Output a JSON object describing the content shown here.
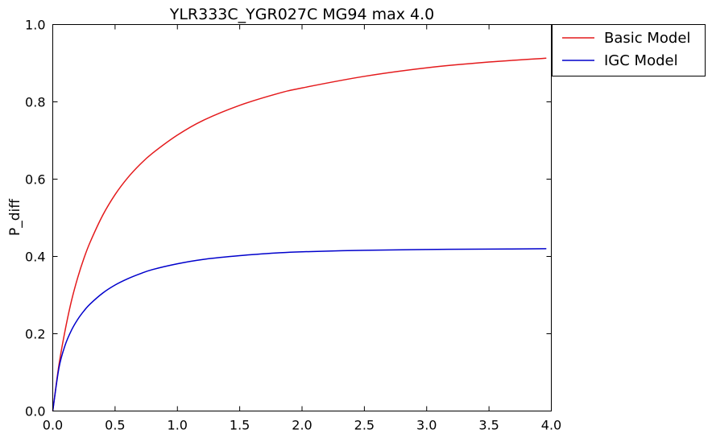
{
  "chart_data": {
    "type": "line",
    "title": "YLR333C_YGR027C MG94 max 4.0",
    "xlabel": "",
    "ylabel": "P_diff",
    "xlim": [
      0.0,
      4.0
    ],
    "ylim": [
      0.0,
      1.0
    ],
    "x_ticks": [
      "0.0",
      "0.5",
      "1.0",
      "1.5",
      "2.0",
      "2.5",
      "3.0",
      "3.5",
      "4.0"
    ],
    "y_ticks": [
      "0.0",
      "0.2",
      "0.4",
      "0.6",
      "0.8",
      "1.0"
    ],
    "grid": false,
    "legend_position": "outside-top-right",
    "x": [
      0.0,
      0.05,
      0.1,
      0.15,
      0.2,
      0.25,
      0.3,
      0.4,
      0.5,
      0.6,
      0.7,
      0.8,
      1.0,
      1.2,
      1.5,
      1.8,
      2.0,
      2.5,
      3.0,
      3.5,
      3.96
    ],
    "series": [
      {
        "name": "Basic Model",
        "color": "#e41a1c",
        "values": [
          0.0,
          0.12,
          0.21,
          0.285,
          0.345,
          0.395,
          0.437,
          0.506,
          0.56,
          0.603,
          0.638,
          0.667,
          0.714,
          0.751,
          0.791,
          0.821,
          0.836,
          0.866,
          0.888,
          0.903,
          0.913
        ]
      },
      {
        "name": "IGC Model",
        "color": "#0000cc",
        "values": [
          0.0,
          0.112,
          0.171,
          0.209,
          0.237,
          0.259,
          0.277,
          0.305,
          0.326,
          0.342,
          0.355,
          0.366,
          0.381,
          0.392,
          0.402,
          0.409,
          0.412,
          0.416,
          0.418,
          0.419,
          0.42
        ]
      }
    ]
  }
}
